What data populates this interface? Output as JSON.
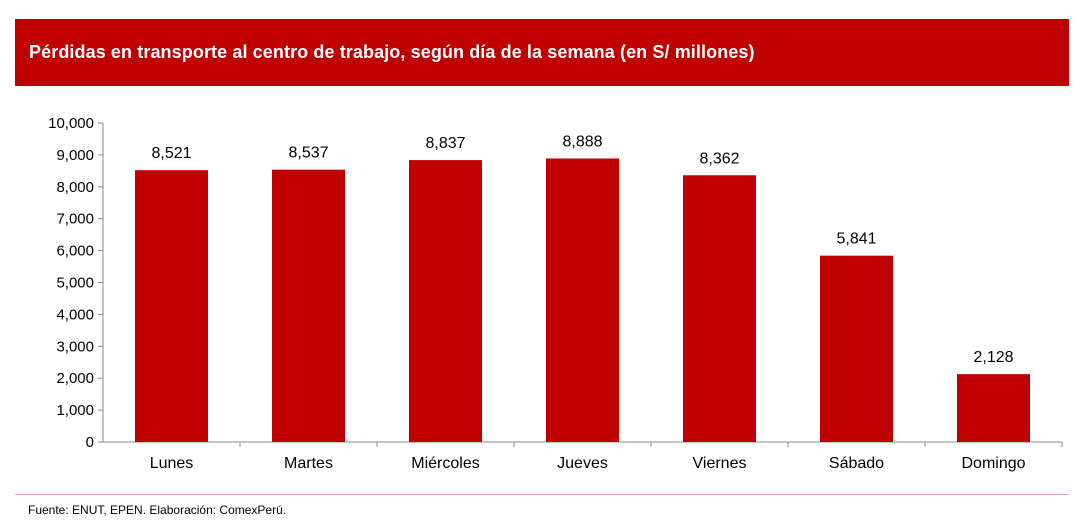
{
  "colors": {
    "title_bg": "#c00000",
    "bar": "#c00000",
    "text": "#000000"
  },
  "chart_data": {
    "type": "bar",
    "title": "Pérdidas en transporte al centro de trabajo, según día de la semana (en S/ millones)",
    "categories": [
      "Lunes",
      "Martes",
      "Miércoles",
      "Jueves",
      "Viernes",
      "Sábado",
      "Domingo"
    ],
    "values": [
      8521,
      8537,
      8837,
      8888,
      8362,
      5841,
      2128
    ],
    "value_labels": [
      "8,521",
      "8,537",
      "8,837",
      "8,888",
      "8,362",
      "5,841",
      "2,128"
    ],
    "ylim": [
      0,
      10000
    ],
    "yticks": [
      0,
      1000,
      2000,
      3000,
      4000,
      5000,
      6000,
      7000,
      8000,
      9000,
      10000
    ],
    "ytick_labels": [
      "0",
      "1,000",
      "2,000",
      "3,000",
      "4,000",
      "5,000",
      "6,000",
      "7,000",
      "8,000",
      "9,000",
      "10,000"
    ],
    "xlabel": "",
    "ylabel": "",
    "grid": false,
    "legend": "none"
  },
  "footer": {
    "source": "Fuente: ENUT, EPEN. Elaboración: ComexPerú."
  }
}
